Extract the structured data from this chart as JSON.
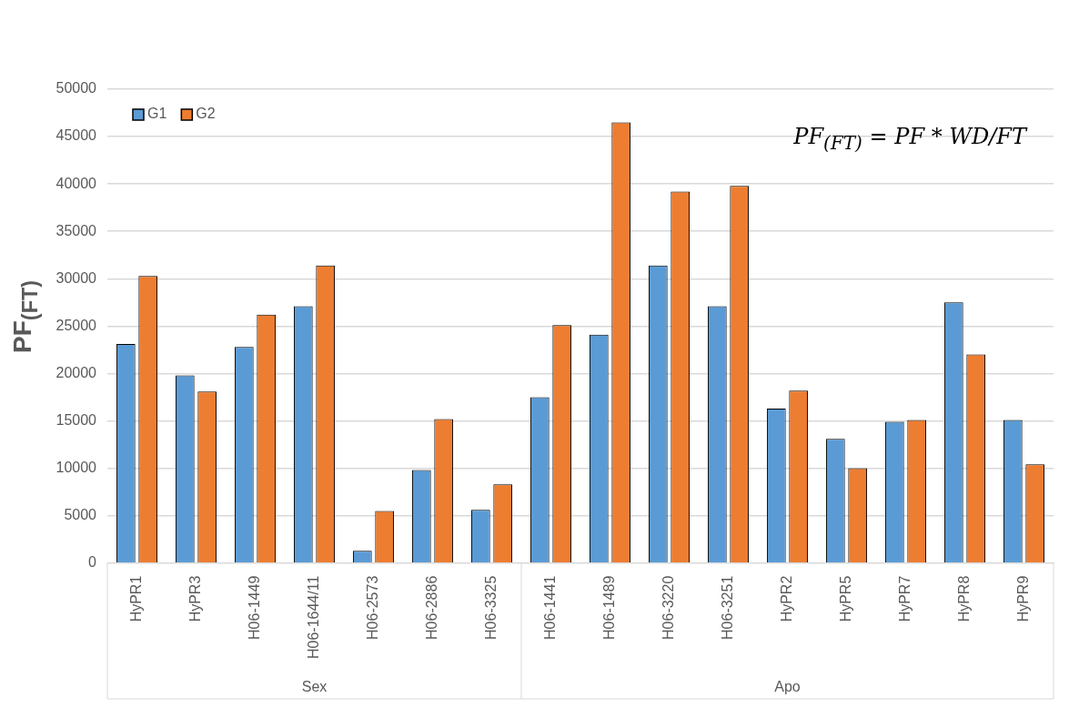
{
  "chart_data": {
    "type": "bar",
    "ylabel": "PF$_{(FT)}$",
    "categories": [
      "HyPR1",
      "HyPR3",
      "H06-1449",
      "H06-1644/11",
      "H06-2573",
      "H06-2886",
      "H06-3325",
      "H06-1441",
      "H06-1489",
      "H06-3220",
      "H06-3251",
      "HyPR2",
      "HyPR5",
      "HyPR7",
      "HyPR8",
      "HyPR9"
    ],
    "series": [
      {
        "name": "G1",
        "color": "#5b9bd5",
        "values": [
          23100,
          19800,
          22800,
          27100,
          1300,
          9800,
          5600,
          17500,
          24100,
          31400,
          27100,
          16300,
          13100,
          14900,
          27500,
          15100
        ]
      },
      {
        "name": "G2",
        "color": "#ed7d31",
        "values": [
          30300,
          18100,
          26200,
          31400,
          5500,
          15200,
          8300,
          25100,
          46500,
          39200,
          39800,
          18200,
          10000,
          15100,
          22000,
          10400
        ]
      }
    ],
    "ylim": [
      0,
      50000
    ],
    "yticks": [
      0,
      5000,
      10000,
      15000,
      20000,
      25000,
      30000,
      35000,
      40000,
      45000,
      50000
    ],
    "grid": "y",
    "legend": "top left",
    "annotations": [
      "PF$_{(FT)}$ = PF * WD/FT",
      "Sex",
      "Apo"
    ]
  }
}
